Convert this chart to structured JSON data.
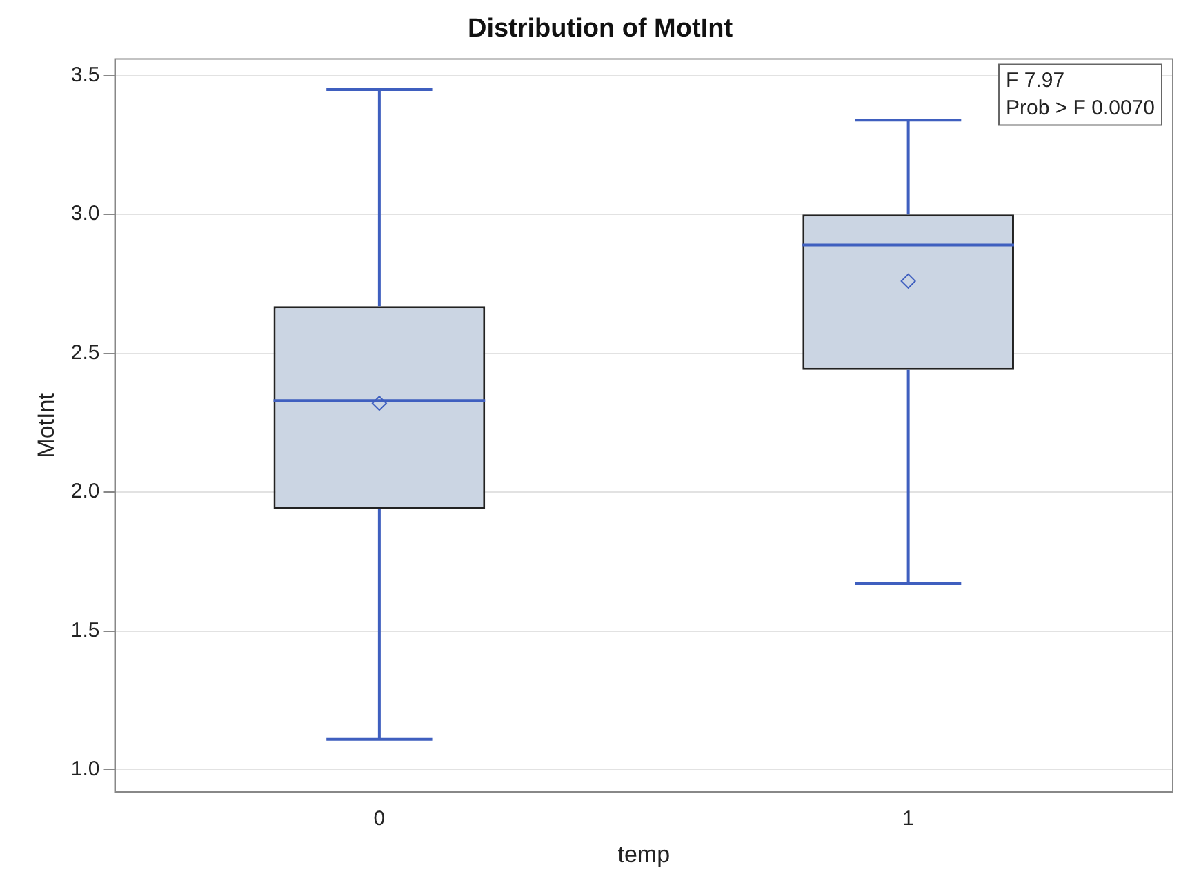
{
  "chart_data": {
    "type": "box",
    "title": "Distribution of MotInt",
    "xlabel": "temp",
    "ylabel": "MotInt",
    "categories": [
      "0",
      "1"
    ],
    "boxes": [
      {
        "low": 1.11,
        "q1": 1.94,
        "median": 2.33,
        "q3": 2.67,
        "high": 3.45,
        "mean": 2.32
      },
      {
        "low": 1.67,
        "q1": 2.44,
        "median": 2.89,
        "q3": 3.0,
        "high": 3.34,
        "mean": 2.76
      }
    ],
    "color": "#222222",
    "ylim": [
      0.92,
      3.56
    ],
    "yticks": [
      {
        "value": 1,
        "label": "1.0"
      },
      1.5,
      {
        "value": 2,
        "label": "2.0"
      },
      2.5,
      {
        "value": 3,
        "label": "3.0"
      },
      3.5
    ],
    "grid": "y",
    "legend": false,
    "marker": "diamond",
    "annotations": [
      "F 7.97",
      "Prob > F 0.0070"
    ]
  }
}
